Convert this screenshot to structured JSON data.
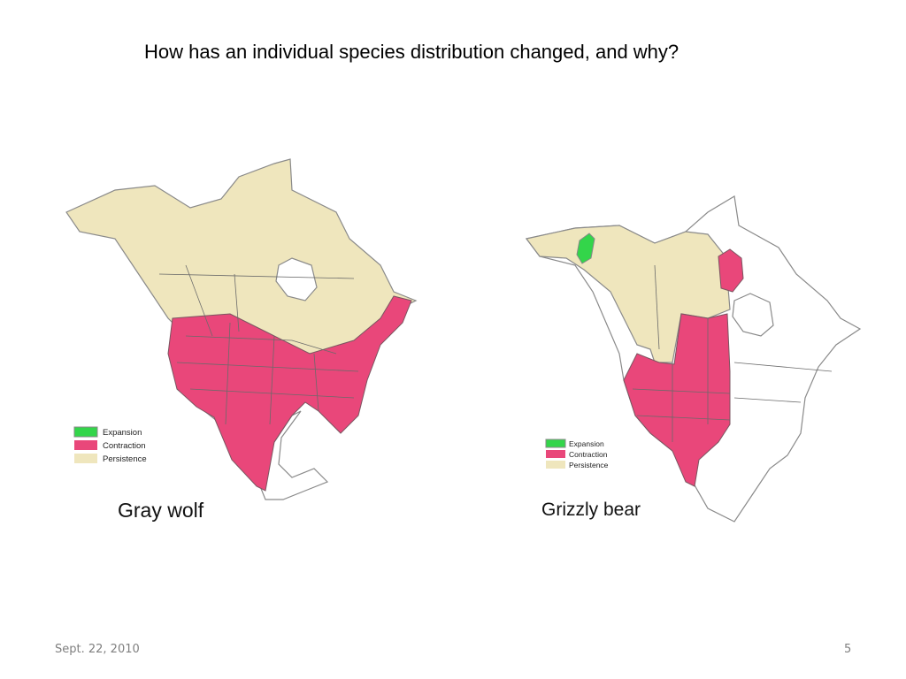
{
  "slide": {
    "title": "How has an individual species distribution changed, and why?",
    "maps": [
      {
        "label": "Gray wolf",
        "legend": [
          "Expansion",
          "Contraction",
          "Persistence"
        ]
      },
      {
        "label": "Grizzly bear",
        "legend": [
          "Expansion",
          "Contraction",
          "Persistence"
        ]
      }
    ],
    "footer": {
      "date": "Sept. 22, 2010",
      "page": "5"
    }
  }
}
